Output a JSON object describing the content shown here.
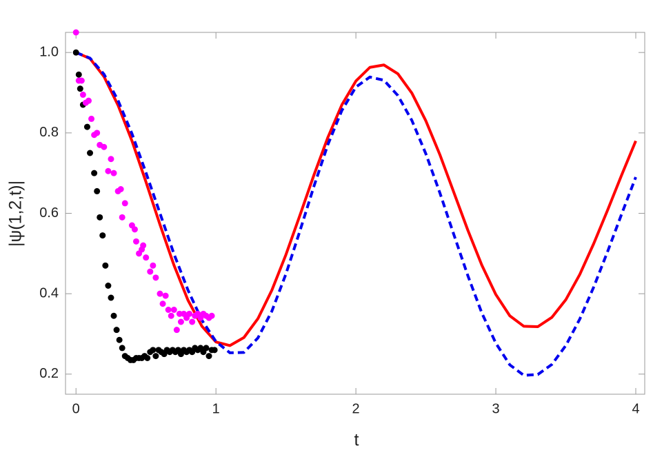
{
  "chart_data": {
    "type": "line",
    "xlabel": "t",
    "ylabel": "|ψ(1,2,t)|",
    "xlim": [
      -0.075,
      4.064
    ],
    "ylim": [
      0.15,
      1.05
    ],
    "xticks": [
      0,
      1,
      2,
      3,
      4
    ],
    "yticks": [
      0.2,
      0.4,
      0.6,
      0.8,
      {
        "value": 1,
        "label": "1.0"
      }
    ],
    "series": [
      {
        "kind": "line",
        "color": "#ff0000",
        "dashed": false,
        "x": [
          0,
          0.1,
          0.2,
          0.3,
          0.4,
          0.5,
          0.6,
          0.7,
          0.8,
          0.9,
          1.0,
          1.1,
          1.2,
          1.3,
          1.4,
          1.5,
          1.6,
          1.7,
          1.8,
          1.9,
          2.0,
          2.1,
          2.2,
          2.3,
          2.4,
          2.5,
          2.6,
          2.7,
          2.8,
          2.9,
          3.0,
          3.1,
          3.2,
          3.3,
          3.4,
          3.5,
          3.6,
          3.7,
          3.8,
          3.9,
          4.0
        ],
        "values": [
          1.0,
          0.985,
          0.94,
          0.869,
          0.78,
          0.678,
          0.572,
          0.471,
          0.384,
          0.319,
          0.28,
          0.271,
          0.291,
          0.338,
          0.409,
          0.497,
          0.595,
          0.695,
          0.789,
          0.87,
          0.929,
          0.963,
          0.969,
          0.947,
          0.899,
          0.83,
          0.746,
          0.652,
          0.558,
          0.471,
          0.398,
          0.345,
          0.319,
          0.318,
          0.341,
          0.385,
          0.448,
          0.525,
          0.609,
          0.696,
          0.78
        ]
      },
      {
        "kind": "line",
        "color": "#0000ee",
        "dashed": true,
        "x": [
          0,
          0.1,
          0.2,
          0.3,
          0.4,
          0.5,
          0.6,
          0.7,
          0.8,
          0.9,
          1.0,
          1.1,
          1.2,
          1.3,
          1.4,
          1.5,
          1.6,
          1.7,
          1.8,
          1.9,
          2.0,
          2.1,
          2.2,
          2.3,
          2.4,
          2.5,
          2.6,
          2.7,
          2.8,
          2.9,
          3.0,
          3.1,
          3.2,
          3.3,
          3.4,
          3.5,
          3.6,
          3.7,
          3.8,
          3.9,
          4.0
        ],
        "values": [
          1.0,
          0.986,
          0.946,
          0.881,
          0.798,
          0.701,
          0.6,
          0.499,
          0.409,
          0.334,
          0.281,
          0.253,
          0.254,
          0.29,
          0.357,
          0.449,
          0.556,
          0.667,
          0.771,
          0.856,
          0.914,
          0.939,
          0.931,
          0.893,
          0.831,
          0.748,
          0.651,
          0.547,
          0.445,
          0.352,
          0.277,
          0.223,
          0.197,
          0.199,
          0.224,
          0.271,
          0.337,
          0.417,
          0.506,
          0.599,
          0.69
        ]
      },
      {
        "kind": "scatter",
        "color": "#000000",
        "x": [
          0,
          0.02,
          0.03,
          0.05,
          0.08,
          0.1,
          0.13,
          0.15,
          0.17,
          0.19,
          0.21,
          0.23,
          0.25,
          0.27,
          0.29,
          0.31,
          0.33,
          0.35,
          0.37,
          0.39,
          0.41,
          0.43,
          0.45,
          0.47,
          0.49,
          0.51,
          0.53,
          0.55,
          0.57,
          0.59,
          0.61,
          0.63,
          0.65,
          0.67,
          0.69,
          0.71,
          0.73,
          0.75,
          0.77,
          0.79,
          0.81,
          0.83,
          0.85,
          0.87,
          0.89,
          0.91,
          0.93,
          0.95,
          0.97,
          0.99
        ],
        "values": [
          1.0,
          0.945,
          0.91,
          0.87,
          0.815,
          0.75,
          0.7,
          0.655,
          0.59,
          0.545,
          0.47,
          0.42,
          0.39,
          0.345,
          0.31,
          0.285,
          0.265,
          0.245,
          0.24,
          0.235,
          0.235,
          0.24,
          0.24,
          0.24,
          0.245,
          0.24,
          0.255,
          0.26,
          0.245,
          0.26,
          0.255,
          0.25,
          0.26,
          0.255,
          0.26,
          0.255,
          0.26,
          0.25,
          0.26,
          0.255,
          0.26,
          0.255,
          0.265,
          0.26,
          0.265,
          0.255,
          0.265,
          0.245,
          0.26,
          0.26
        ]
      },
      {
        "kind": "scatter",
        "color": "#ff00ff",
        "x": [
          0,
          0.02,
          0.04,
          0.05,
          0.07,
          0.09,
          0.11,
          0.13,
          0.15,
          0.17,
          0.2,
          0.23,
          0.25,
          0.27,
          0.3,
          0.32,
          0.33,
          0.35,
          0.4,
          0.42,
          0.43,
          0.45,
          0.47,
          0.48,
          0.5,
          0.53,
          0.55,
          0.57,
          0.6,
          0.62,
          0.64,
          0.66,
          0.68,
          0.7,
          0.72,
          0.74,
          0.75,
          0.77,
          0.79,
          0.81,
          0.83,
          0.85,
          0.87,
          0.89,
          0.91,
          0.93,
          0.95,
          0.97
        ],
        "values": [
          1.05,
          0.93,
          0.93,
          0.895,
          0.875,
          0.88,
          0.835,
          0.795,
          0.8,
          0.77,
          0.765,
          0.705,
          0.735,
          0.7,
          0.655,
          0.66,
          0.59,
          0.625,
          0.57,
          0.56,
          0.53,
          0.5,
          0.51,
          0.52,
          0.49,
          0.455,
          0.47,
          0.44,
          0.4,
          0.375,
          0.395,
          0.36,
          0.345,
          0.36,
          0.31,
          0.35,
          0.33,
          0.35,
          0.34,
          0.35,
          0.33,
          0.345,
          0.35,
          0.34,
          0.35,
          0.345,
          0.34,
          0.345
        ]
      }
    ]
  }
}
